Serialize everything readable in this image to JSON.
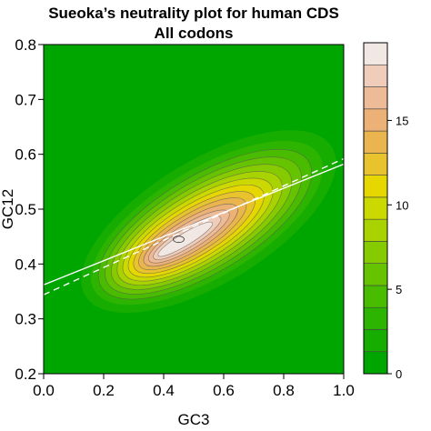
{
  "chart_data": {
    "type": "heatmap",
    "title": "Sueoka’s neutrality plot for human CDS",
    "subtitle": "All codons",
    "xlabel": "GC3",
    "ylabel": "GC12",
    "xlim": [
      0.0,
      1.0
    ],
    "ylim": [
      0.2,
      0.8
    ],
    "x_ticks": [
      "0.0",
      "0.2",
      "0.4",
      "0.6",
      "0.8",
      "1.0"
    ],
    "y_ticks": [
      "0.2",
      "0.3",
      "0.4",
      "0.5",
      "0.6",
      "0.7",
      "0.8"
    ],
    "density_peak": {
      "x": 0.45,
      "y": 0.445,
      "value": 19
    },
    "density_ridge_axis": [
      [
        0.3,
        0.395
      ],
      [
        0.8,
        0.56
      ]
    ],
    "regression_lines": [
      {
        "style": "solid",
        "x": [
          0.0,
          1.0
        ],
        "y": [
          0.362,
          0.582
        ]
      },
      {
        "style": "dashed",
        "x": [
          0.0,
          1.0
        ],
        "y": [
          0.344,
          0.592
        ]
      }
    ],
    "colorbar": {
      "range": [
        0,
        19
      ],
      "ticks": [
        "0",
        "5",
        "10",
        "15"
      ],
      "levels": 14,
      "colors": [
        "#00a600",
        "#16ad00",
        "#2db400",
        "#49bc00",
        "#66c300",
        "#86cb00",
        "#a8d200",
        "#ccd900",
        "#e6d700",
        "#e8c32e",
        "#eab54f",
        "#ecb176",
        "#eebb98",
        "#f0cdbb",
        "#f2e8e3"
      ]
    },
    "grid": false,
    "legend": "right"
  }
}
